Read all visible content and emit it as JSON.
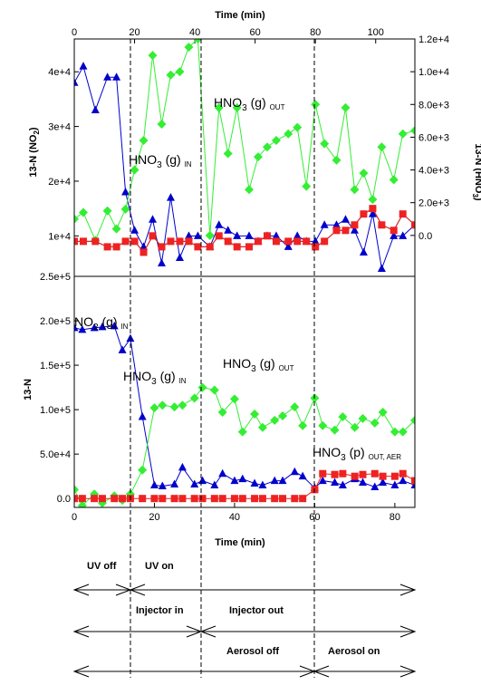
{
  "chart_data": [
    {
      "type": "line",
      "panel": "top",
      "xlabel": "Time (min)",
      "x_axis_position": "top",
      "xlim": [
        0,
        113
      ],
      "xticks": [
        0,
        20,
        40,
        60,
        80,
        100
      ],
      "ylabel_left": "13-N (NO2)",
      "ylim_left": [
        2600,
        46000
      ],
      "yticks_left": [
        10000,
        20000,
        30000,
        40000
      ],
      "ytick_labels_left": [
        "1e+4",
        "2e+4",
        "3e+4",
        "4e+4"
      ],
      "ylabel_right": "13-N (HNO3)",
      "ylim_right": [
        -2500,
        12000
      ],
      "yticks_right": [
        0,
        2000,
        4000,
        6000,
        8000,
        10000,
        12000
      ],
      "ytick_labels_right": [
        "0.0",
        "2.0e+3",
        "4.0e+3",
        "6.0e+3",
        "8.0e+3",
        "1.0e+4",
        "1.2e+4"
      ],
      "annotations": [
        {
          "text": "HNO",
          "sub": "3",
          "after": " (g) ",
          "tail": "OUT",
          "color": "#20a020"
        },
        {
          "text": "HNO",
          "sub": "3",
          "after": " (g) ",
          "tail": "IN",
          "color": "#20a020"
        }
      ],
      "series": [
        {
          "color": "#0000cc",
          "marker": "triangle",
          "axis": "left",
          "x": [
            0,
            3,
            7,
            11,
            14,
            17,
            20,
            23,
            26,
            29,
            32,
            35,
            38,
            41,
            45,
            48,
            51,
            54,
            58,
            61,
            64,
            67,
            71,
            74,
            77,
            80,
            83,
            87,
            90,
            93,
            96,
            99,
            102,
            106,
            109,
            113
          ],
          "y": [
            38000,
            41000,
            33000,
            39000,
            39000,
            18000,
            11000,
            8000,
            13000,
            5000,
            17000,
            6000,
            10000,
            10000,
            8000,
            12000,
            11000,
            10000,
            10000,
            9000,
            10000,
            10000,
            8000,
            10000,
            9000,
            9000,
            12000,
            12000,
            13000,
            11000,
            7000,
            14000,
            4000,
            10000,
            10000,
            12000
          ]
        },
        {
          "color": "#33ee33",
          "marker": "diamond",
          "axis": "right",
          "x": [
            0,
            3,
            7,
            11,
            14,
            17,
            20,
            23,
            26,
            29,
            32,
            35,
            38,
            41,
            45,
            48,
            51,
            54,
            58,
            61,
            64,
            67,
            71,
            74,
            77,
            80,
            83,
            87,
            90,
            93,
            96,
            99,
            102,
            106,
            109,
            113
          ],
          "y": [
            1000,
            1400,
            -300,
            1500,
            400,
            1600,
            4000,
            5800,
            11000,
            6800,
            9800,
            10000,
            11500,
            12000,
            0,
            7800,
            5000,
            7800,
            2800,
            4800,
            5400,
            5800,
            6200,
            6600,
            3000,
            8000,
            5600,
            4600,
            7800,
            2800,
            3800,
            2200,
            5400,
            3400,
            6200,
            6400
          ]
        },
        {
          "color": "#ee2222",
          "marker": "square",
          "axis": "left",
          "x": [
            0,
            3,
            7,
            11,
            14,
            17,
            20,
            23,
            26,
            29,
            32,
            35,
            38,
            41,
            45,
            48,
            51,
            54,
            58,
            61,
            64,
            67,
            71,
            74,
            77,
            80,
            83,
            87,
            90,
            93,
            96,
            99,
            102,
            106,
            109,
            113
          ],
          "y": [
            9000,
            9000,
            9000,
            8000,
            8000,
            9000,
            9000,
            7000,
            10000,
            8000,
            9000,
            9000,
            9000,
            8000,
            8000,
            10000,
            9000,
            8000,
            8000,
            9000,
            10000,
            9000,
            9000,
            9000,
            9000,
            8000,
            9000,
            11000,
            11000,
            12000,
            14000,
            15000,
            12000,
            11000,
            14000,
            12000
          ]
        }
      ]
    },
    {
      "type": "line",
      "panel": "bottom",
      "xlabel": "Time (min)",
      "xlim": [
        0,
        85
      ],
      "xticks": [
        0,
        20,
        40,
        60,
        80
      ],
      "ylabel": "13-N",
      "ylim": [
        -10000,
        250000
      ],
      "yticks": [
        0,
        50000,
        100000,
        150000,
        200000,
        250000
      ],
      "ytick_labels": [
        "0.0",
        "5.0e+4",
        "1.0e+5",
        "1.5e+5",
        "2.0e+5",
        "2.5e+5"
      ],
      "annotations": [
        {
          "text": "NO",
          "sub": "2",
          "after": " (g) ",
          "tail": "IN",
          "color": "#0000cc"
        },
        {
          "text": "HNO",
          "sub": "3",
          "after": " (g) ",
          "tail": "IN",
          "color": "#20a020"
        },
        {
          "text": "HNO",
          "sub": "3",
          "after": " (g) ",
          "tail": "OUT",
          "color": "#20a020"
        },
        {
          "text": "HNO",
          "sub": "3",
          "after": " (p) ",
          "tail": "OUT, AER",
          "color": "#ee2222"
        }
      ],
      "series": [
        {
          "color": "#0000cc",
          "marker": "triangle",
          "x": [
            0,
            2,
            5,
            7,
            10,
            12,
            14,
            17,
            20,
            22,
            25,
            27,
            30,
            32,
            35,
            37,
            40,
            42,
            45,
            47,
            50,
            52,
            55,
            57,
            60,
            62,
            65,
            67,
            70,
            72,
            75,
            77,
            80,
            82,
            85
          ],
          "y": [
            192000,
            190000,
            192000,
            193000,
            194000,
            167000,
            180000,
            92000,
            15000,
            14000,
            16000,
            35000,
            16000,
            20000,
            15000,
            28000,
            20000,
            22000,
            17000,
            15000,
            20000,
            20000,
            30000,
            25000,
            12000,
            20000,
            18000,
            15000,
            22000,
            18000,
            13000,
            18000,
            15000,
            20000,
            15000
          ]
        },
        {
          "color": "#33ee33",
          "marker": "diamond",
          "x": [
            0,
            2,
            5,
            7,
            10,
            12,
            14,
            17,
            20,
            22,
            25,
            27,
            30,
            32,
            35,
            37,
            40,
            42,
            45,
            47,
            50,
            52,
            55,
            57,
            60,
            62,
            65,
            67,
            70,
            72,
            75,
            77,
            80,
            82,
            85
          ],
          "y": [
            10000,
            -8000,
            5000,
            -5000,
            3000,
            -2000,
            5000,
            32000,
            102000,
            105000,
            103000,
            105000,
            113000,
            125000,
            122000,
            97000,
            112000,
            75000,
            95000,
            80000,
            88000,
            93000,
            103000,
            82000,
            113000,
            82000,
            77000,
            92000,
            80000,
            90000,
            85000,
            97000,
            75000,
            75000,
            88000
          ]
        },
        {
          "color": "#ee2222",
          "marker": "square",
          "x": [
            0,
            2,
            5,
            7,
            10,
            12,
            14,
            17,
            20,
            22,
            25,
            27,
            30,
            32,
            35,
            37,
            40,
            42,
            45,
            47,
            50,
            52,
            55,
            57,
            60,
            62,
            65,
            67,
            70,
            72,
            75,
            77,
            80,
            82,
            85
          ],
          "y": [
            0,
            0,
            0,
            0,
            0,
            0,
            0,
            0,
            0,
            0,
            0,
            0,
            0,
            0,
            0,
            0,
            0,
            0,
            0,
            0,
            0,
            0,
            0,
            0,
            10000,
            28000,
            27000,
            28000,
            25000,
            27000,
            28000,
            25000,
            25000,
            28000,
            20000
          ]
        }
      ]
    }
  ],
  "conditions": {
    "uv_off": "UV off",
    "uv_on": "UV on",
    "injector_in": "Injector in",
    "injector_out": "Injector out",
    "aerosol_off": "Aerosol off",
    "aerosol_on": "Aerosol on"
  }
}
